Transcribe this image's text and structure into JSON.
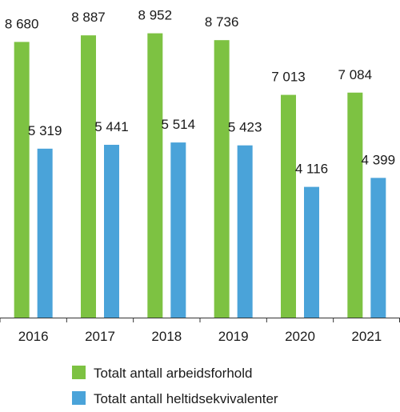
{
  "chart_data": {
    "type": "bar",
    "categories": [
      "2016",
      "2017",
      "2018",
      "2019",
      "2020",
      "2021"
    ],
    "series": [
      {
        "name": "Totalt antall arbeidsforhold",
        "color": "#7dc242",
        "values": [
          8680,
          8887,
          8952,
          8736,
          7013,
          7084
        ],
        "labels": [
          "8 680",
          "8 887",
          "8 952",
          "8 736",
          "7 013",
          "7 084"
        ]
      },
      {
        "name": "Totalt antall heltidsekvivalenter",
        "color": "#4aa3d9",
        "values": [
          5319,
          5441,
          5514,
          5423,
          4116,
          4399
        ],
        "labels": [
          "5 319",
          "5 441",
          "5 514",
          "5 423",
          "4 116",
          "4 399"
        ]
      }
    ],
    "ylim": [
      0,
      10000
    ],
    "grid": false,
    "legend_position": "bottom"
  }
}
